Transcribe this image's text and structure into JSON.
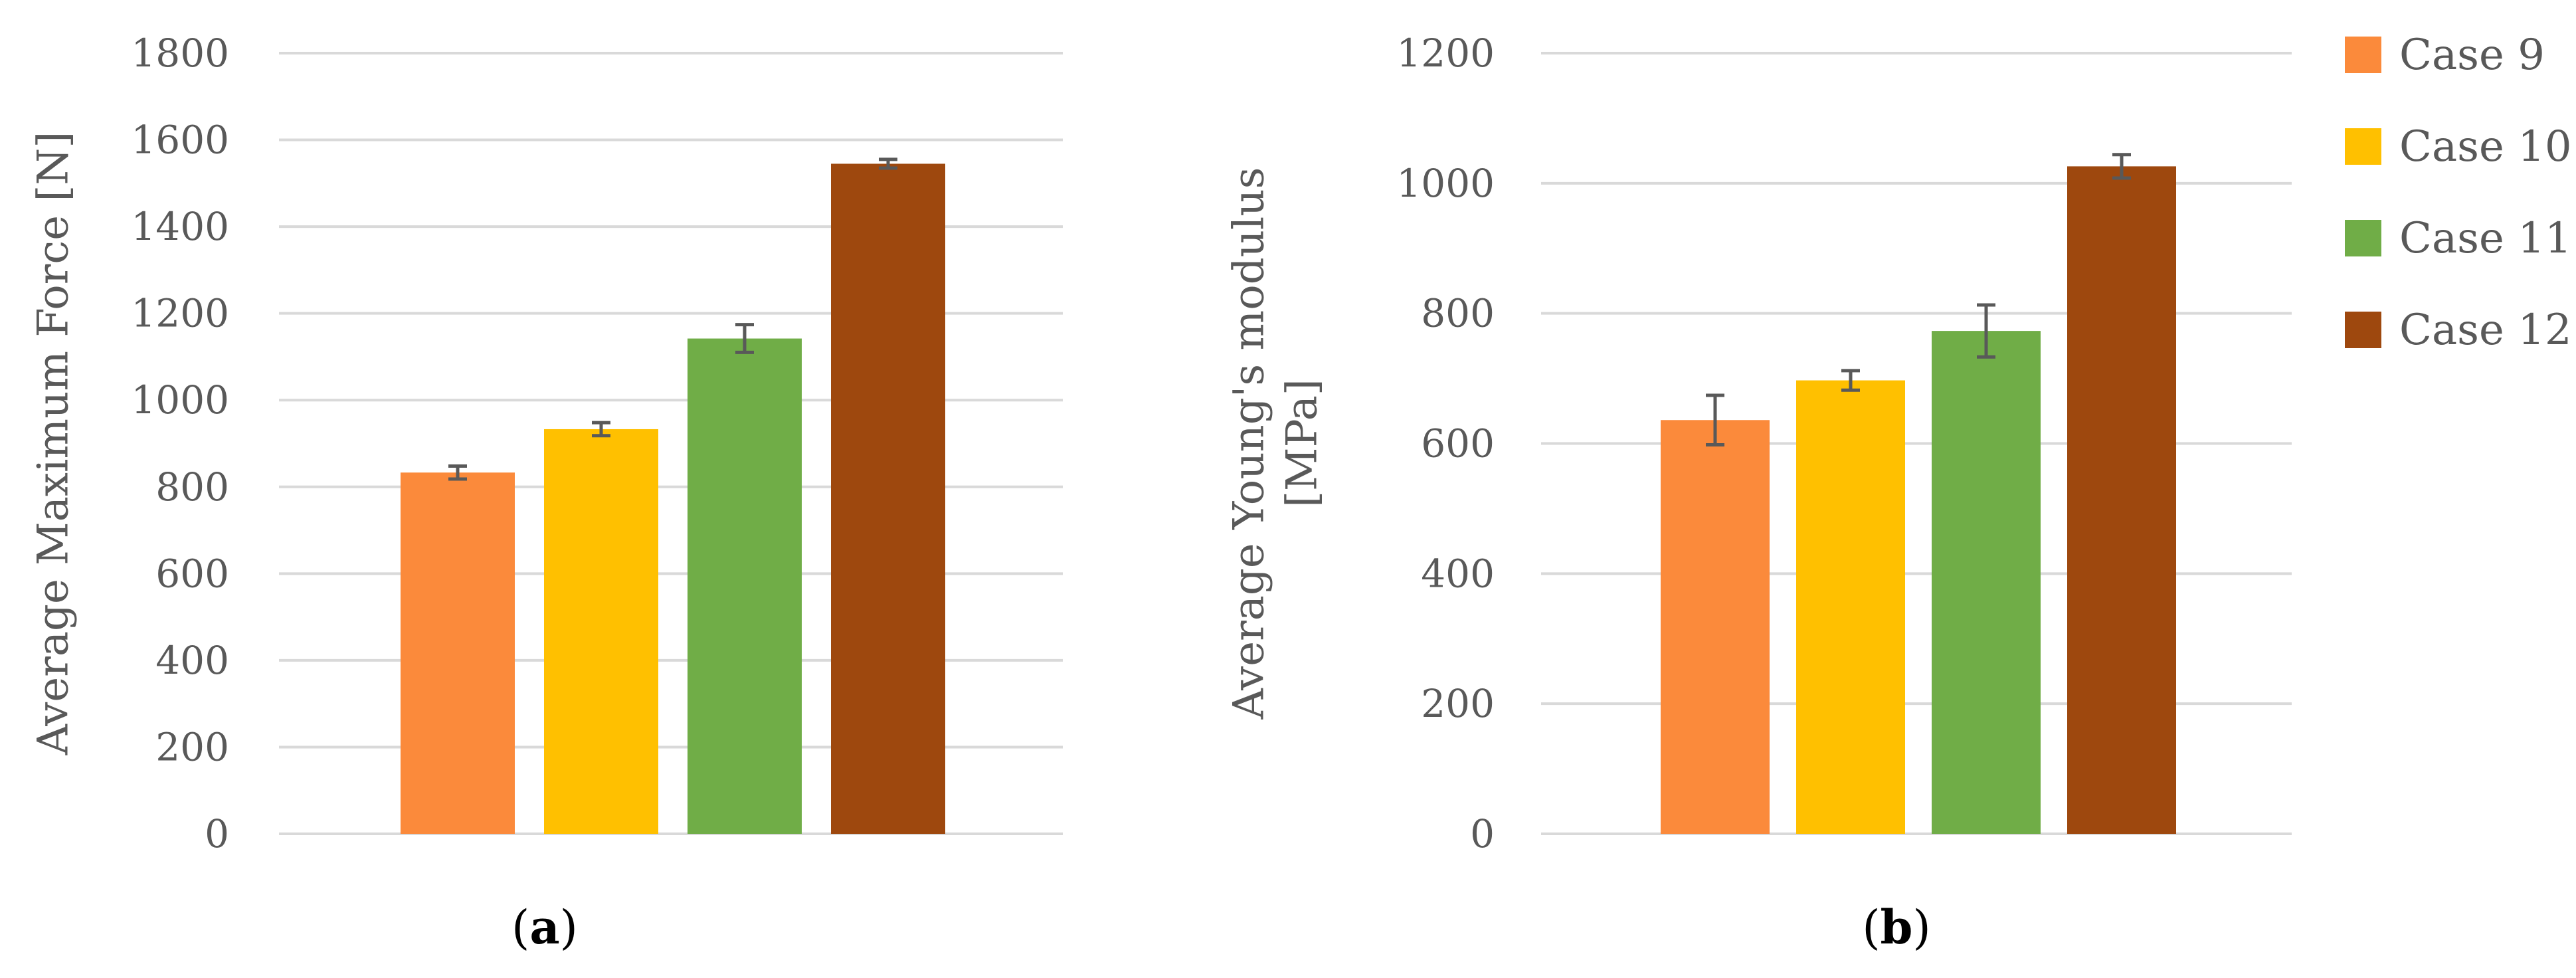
{
  "colors": {
    "grid": "#d9d9d9",
    "error_bar": "#595959",
    "text": "#595959"
  },
  "legend": {
    "entries": [
      {
        "label": "Case 9",
        "color": "#fb8a3b"
      },
      {
        "label": "Case 10",
        "color": "#ffc000"
      },
      {
        "label": "Case 11",
        "color": "#70ad47"
      },
      {
        "label": "Case 12",
        "color": "#9e480e"
      }
    ],
    "placement": "right"
  },
  "chart_data": [
    {
      "type": "bar",
      "panel": "a",
      "caption_open": "(",
      "caption_letter": "a",
      "caption_close": ")",
      "ylabel": "Average Maximum Force [N]",
      "ylabel_lines": [
        "Average Maximum Force [N]"
      ],
      "xlabel": "",
      "ylim": [
        0,
        1800
      ],
      "yticks": [
        0,
        200,
        400,
        600,
        800,
        1000,
        1200,
        1400,
        1600,
        1800
      ],
      "grid": true,
      "series": [
        {
          "name": "Case 9",
          "value": 833,
          "error": 15
        },
        {
          "name": "Case 10",
          "value": 933,
          "error": 15
        },
        {
          "name": "Case 11",
          "value": 1142,
          "error": 32
        },
        {
          "name": "Case 12",
          "value": 1545,
          "error": 10
        }
      ]
    },
    {
      "type": "bar",
      "panel": "b",
      "caption_open": "(",
      "caption_letter": "b",
      "caption_close": ")",
      "ylabel": "Average Young's modulus [MPa]",
      "ylabel_lines": [
        "Average Young's modulus",
        "[MPa]"
      ],
      "xlabel": "",
      "ylim": [
        0,
        1200
      ],
      "yticks": [
        0,
        200,
        400,
        600,
        800,
        1000,
        1200
      ],
      "grid": true,
      "series": [
        {
          "name": "Case 9",
          "value": 636,
          "error": 38
        },
        {
          "name": "Case 10",
          "value": 697,
          "error": 15
        },
        {
          "name": "Case 11",
          "value": 773,
          "error": 40
        },
        {
          "name": "Case 12",
          "value": 1026,
          "error": 18
        }
      ]
    }
  ]
}
